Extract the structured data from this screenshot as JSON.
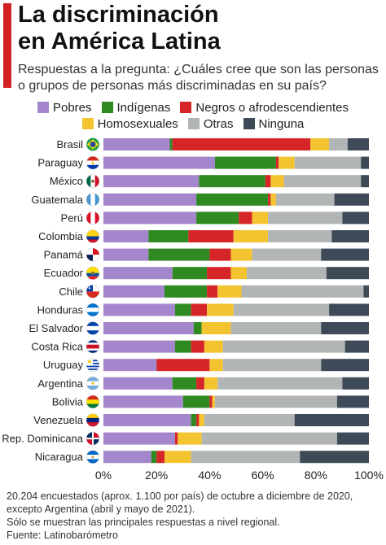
{
  "title": [
    "La discriminación",
    "en América Latina"
  ],
  "subtitle": [
    "Respuestas a la pregunta: ¿Cuáles cree que son las personas",
    "o grupos de personas más discriminadas en su país?"
  ],
  "footer": [
    "20.204 encuestados (aprox. 1.100 por país) de octubre a diciembre de 2020,",
    "excepto Argentina (abril y mayo de 2021).",
    "Sólo se muestran las principales respuestas a nivel regional.",
    "Fuente: Latinobarómetro"
  ],
  "colors": {
    "accent": "#d32027",
    "Pobres": "#a486cc",
    "Indígenas": "#2f8a22",
    "Negros o afrodescendientes": "#d62528",
    "Homosexuales": "#f4c430",
    "Otras": "#b2b5b5",
    "Ninguna": "#3e4a57"
  },
  "chart_data": {
    "type": "bar",
    "orientation": "horizontal",
    "stacked": true,
    "xlim": [
      0,
      100
    ],
    "xticks": [
      "0%",
      "20%",
      "40%",
      "60%",
      "80%",
      "100%"
    ],
    "grid": false,
    "legend_position": "top",
    "categories": [
      "Brasil",
      "Paraguay",
      "México",
      "Guatemala",
      "Perú",
      "Colombia",
      "Panamá",
      "Ecuador",
      "Chile",
      "Honduras",
      "El Salvador",
      "Costa Rica",
      "Uruguay",
      "Argentina",
      "Bolivia",
      "Venezuela",
      "Rep. Dominicana",
      "Nicaragua"
    ],
    "flags": [
      "brasil",
      "paraguay",
      "mexico",
      "guatemala",
      "peru",
      "colombia",
      "panama",
      "ecuador",
      "chile",
      "honduras",
      "el-salvador",
      "costa-rica",
      "uruguay",
      "argentina",
      "bolivia",
      "venezuela",
      "rep-dominicana",
      "nicaragua"
    ],
    "series": [
      {
        "name": "Pobres",
        "values": [
          25,
          42,
          36,
          35,
          35,
          17,
          17,
          26,
          23,
          27,
          34,
          27,
          20,
          26,
          30,
          33,
          27,
          18
        ]
      },
      {
        "name": "Indígenas",
        "values": [
          1,
          23,
          25,
          27,
          16,
          15,
          23,
          13,
          16,
          6,
          3,
          6,
          0,
          9,
          10,
          2,
          0,
          2
        ]
      },
      {
        "name": "Negros o afrodescendientes",
        "values": [
          52,
          1,
          2,
          1,
          5,
          17,
          8,
          9,
          4,
          6,
          0,
          5,
          20,
          3,
          1,
          1,
          1,
          3
        ]
      },
      {
        "name": "Homosexuales",
        "values": [
          7,
          6,
          5,
          2,
          6,
          13,
          8,
          6,
          9,
          10,
          11,
          7,
          5,
          5,
          1,
          2,
          9,
          10
        ]
      },
      {
        "name": "Otras",
        "values": [
          7,
          25,
          29,
          22,
          28,
          24,
          26,
          30,
          46,
          36,
          34,
          46,
          37,
          47,
          46,
          34,
          51,
          41
        ]
      },
      {
        "name": "Ninguna",
        "values": [
          8,
          3,
          3,
          13,
          10,
          14,
          18,
          16,
          2,
          15,
          18,
          9,
          18,
          10,
          12,
          28,
          12,
          26
        ]
      }
    ]
  }
}
